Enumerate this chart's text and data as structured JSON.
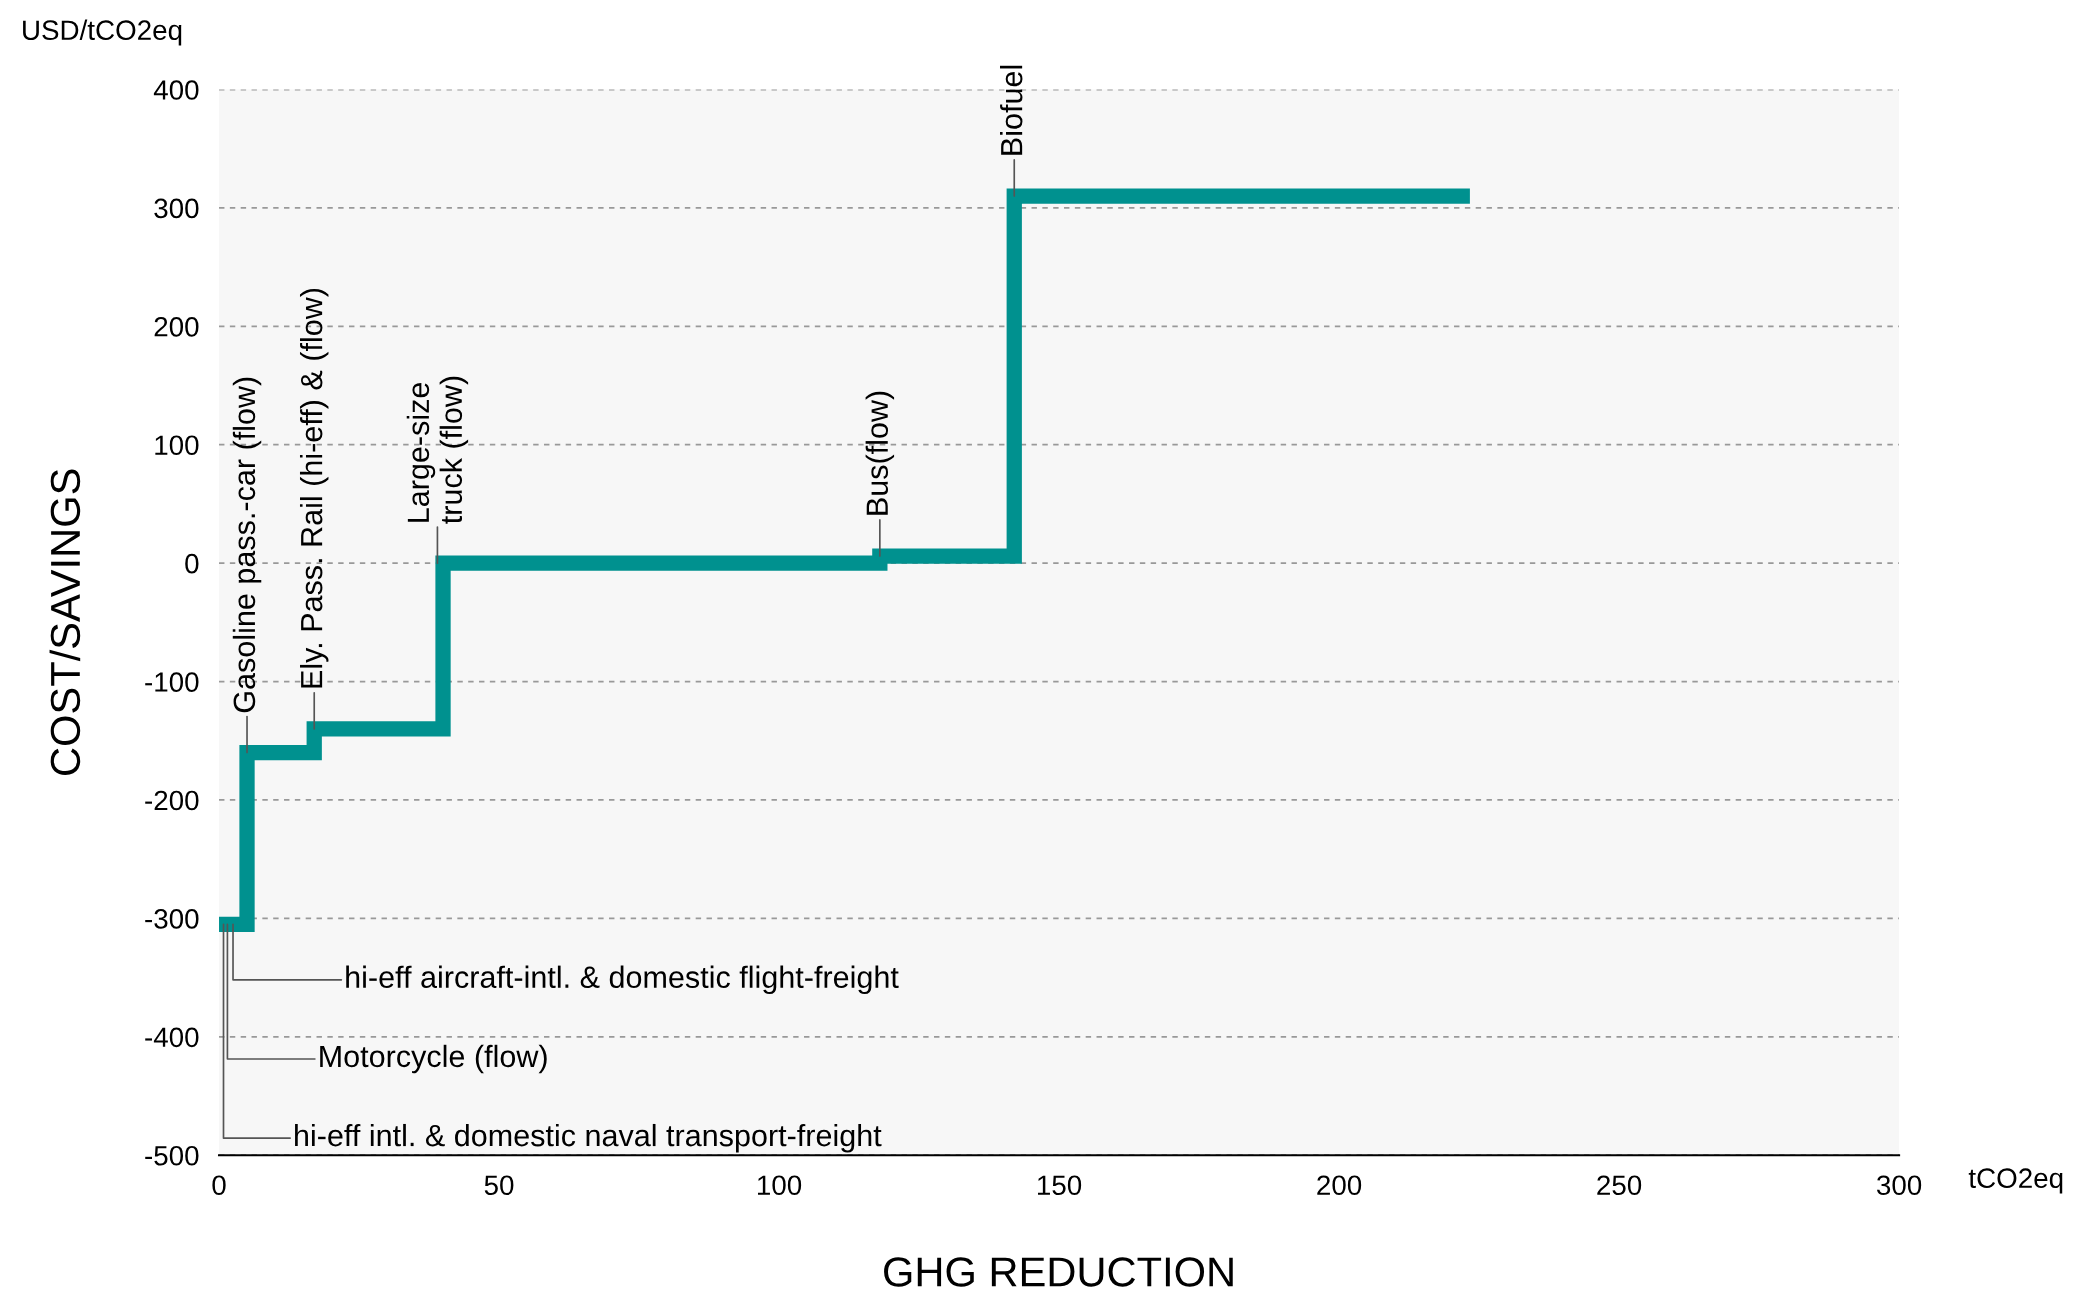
{
  "chart_data": {
    "type": "step",
    "xlabel": "GHG REDUCTION",
    "ylabel": "COST/SAVINGS",
    "x": [
      0,
      5,
      17,
      40,
      118,
      142,
      222
    ],
    "series": [
      {
        "color": "#00918f",
        "values": [
          -305,
          -160,
          -140,
          0,
          6,
          310,
          310
        ]
      }
    ],
    "xlim": [
      0,
      300
    ],
    "xticks": [
      0,
      50,
      100,
      150,
      200,
      250,
      300
    ],
    "ylim": [
      -500,
      400
    ],
    "yticks": [
      -500,
      -400,
      -300,
      -200,
      -100,
      0,
      100,
      200,
      300,
      400
    ],
    "grid": "y",
    "line_style": "solid",
    "annotations": [
      "USD/tCO2eq",
      "tCO2eq",
      {
        "text": "Gasoline pass.-car (flow)",
        "x": 5,
        "y": -160
      },
      {
        "text": "Ely. Pass. Rail (hi-eff) & (flow)",
        "x": 17,
        "y": -140
      },
      {
        "text": "Large-size\ntruck (flow)",
        "x": 39,
        "y": 0
      },
      {
        "text": "Bus(flow)",
        "x": 118,
        "y": 6
      },
      {
        "text": "Biofuel",
        "x": 142,
        "y": 310
      },
      {
        "text": "hi-eff aircraft-intl. & domestic flight-freight",
        "x": 2.5,
        "y": -305
      },
      {
        "text": "Motorcycle (flow)",
        "x": 1.5,
        "y": -305
      },
      {
        "text": "hi-eff intl. & domestic naval transport-freight",
        "x": 0.8,
        "y": -305
      }
    ]
  }
}
